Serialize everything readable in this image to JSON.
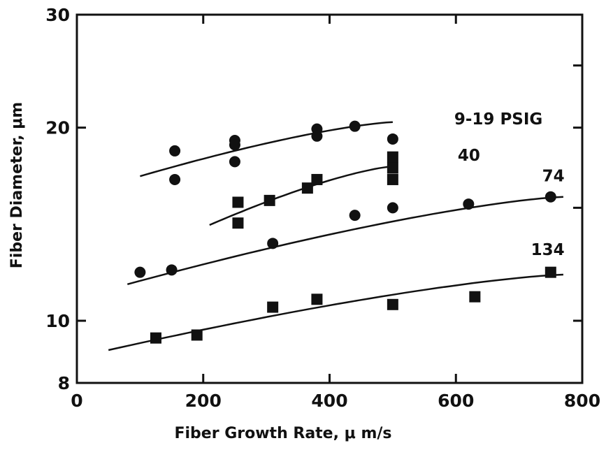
{
  "chart_data": {
    "type": "scatter",
    "title": "",
    "xlabel": "Fiber Growth Rate, μ m/s",
    "ylabel": "Fiber Diameter, μm",
    "xlim": [
      0,
      800
    ],
    "ylim": [
      8,
      30
    ],
    "yscale": "log",
    "grid": false,
    "xticks": [
      0,
      200,
      400,
      600,
      800
    ],
    "xtick_labels": [
      "0",
      "200",
      "400",
      "600",
      "800"
    ],
    "yticks": [
      8,
      10,
      20,
      30
    ],
    "ytick_labels": [
      "8",
      "10",
      "20",
      "30"
    ],
    "series": [
      {
        "name": "9-19 PSIG",
        "marker": "circle",
        "points": [
          [
            155,
            18.4
          ],
          [
            155,
            16.6
          ],
          [
            250,
            19.1
          ],
          [
            250,
            18.8
          ],
          [
            250,
            17.7
          ],
          [
            380,
            19.9
          ],
          [
            380,
            19.4
          ],
          [
            440,
            20.1
          ],
          [
            500,
            19.2
          ]
        ],
        "fit": [
          [
            100,
            16.8
          ],
          [
            500,
            20.4
          ]
        ]
      },
      {
        "name": "40",
        "marker": "square",
        "points": [
          [
            255,
            15.3
          ],
          [
            255,
            14.2
          ],
          [
            305,
            15.4
          ],
          [
            365,
            16.1
          ],
          [
            380,
            16.6
          ],
          [
            500,
            18.0
          ],
          [
            500,
            17.3
          ],
          [
            500,
            16.6
          ]
        ],
        "fit": [
          [
            210,
            14.1
          ],
          [
            500,
            17.4
          ]
        ]
      },
      {
        "name": "74",
        "marker": "circle",
        "points": [
          [
            100,
            11.9
          ],
          [
            150,
            12.0
          ],
          [
            310,
            13.2
          ],
          [
            440,
            14.6
          ],
          [
            500,
            15.0
          ],
          [
            620,
            15.2
          ],
          [
            750,
            15.6
          ]
        ],
        "fit": [
          [
            80,
            11.4
          ],
          [
            770,
            15.6
          ]
        ]
      },
      {
        "name": "134",
        "marker": "square",
        "points": [
          [
            125,
            9.4
          ],
          [
            190,
            9.5
          ],
          [
            310,
            10.5
          ],
          [
            380,
            10.8
          ],
          [
            500,
            10.6
          ],
          [
            630,
            10.9
          ],
          [
            750,
            11.9
          ]
        ],
        "fit": [
          [
            50,
            9.0
          ],
          [
            770,
            11.8
          ]
        ]
      }
    ]
  }
}
